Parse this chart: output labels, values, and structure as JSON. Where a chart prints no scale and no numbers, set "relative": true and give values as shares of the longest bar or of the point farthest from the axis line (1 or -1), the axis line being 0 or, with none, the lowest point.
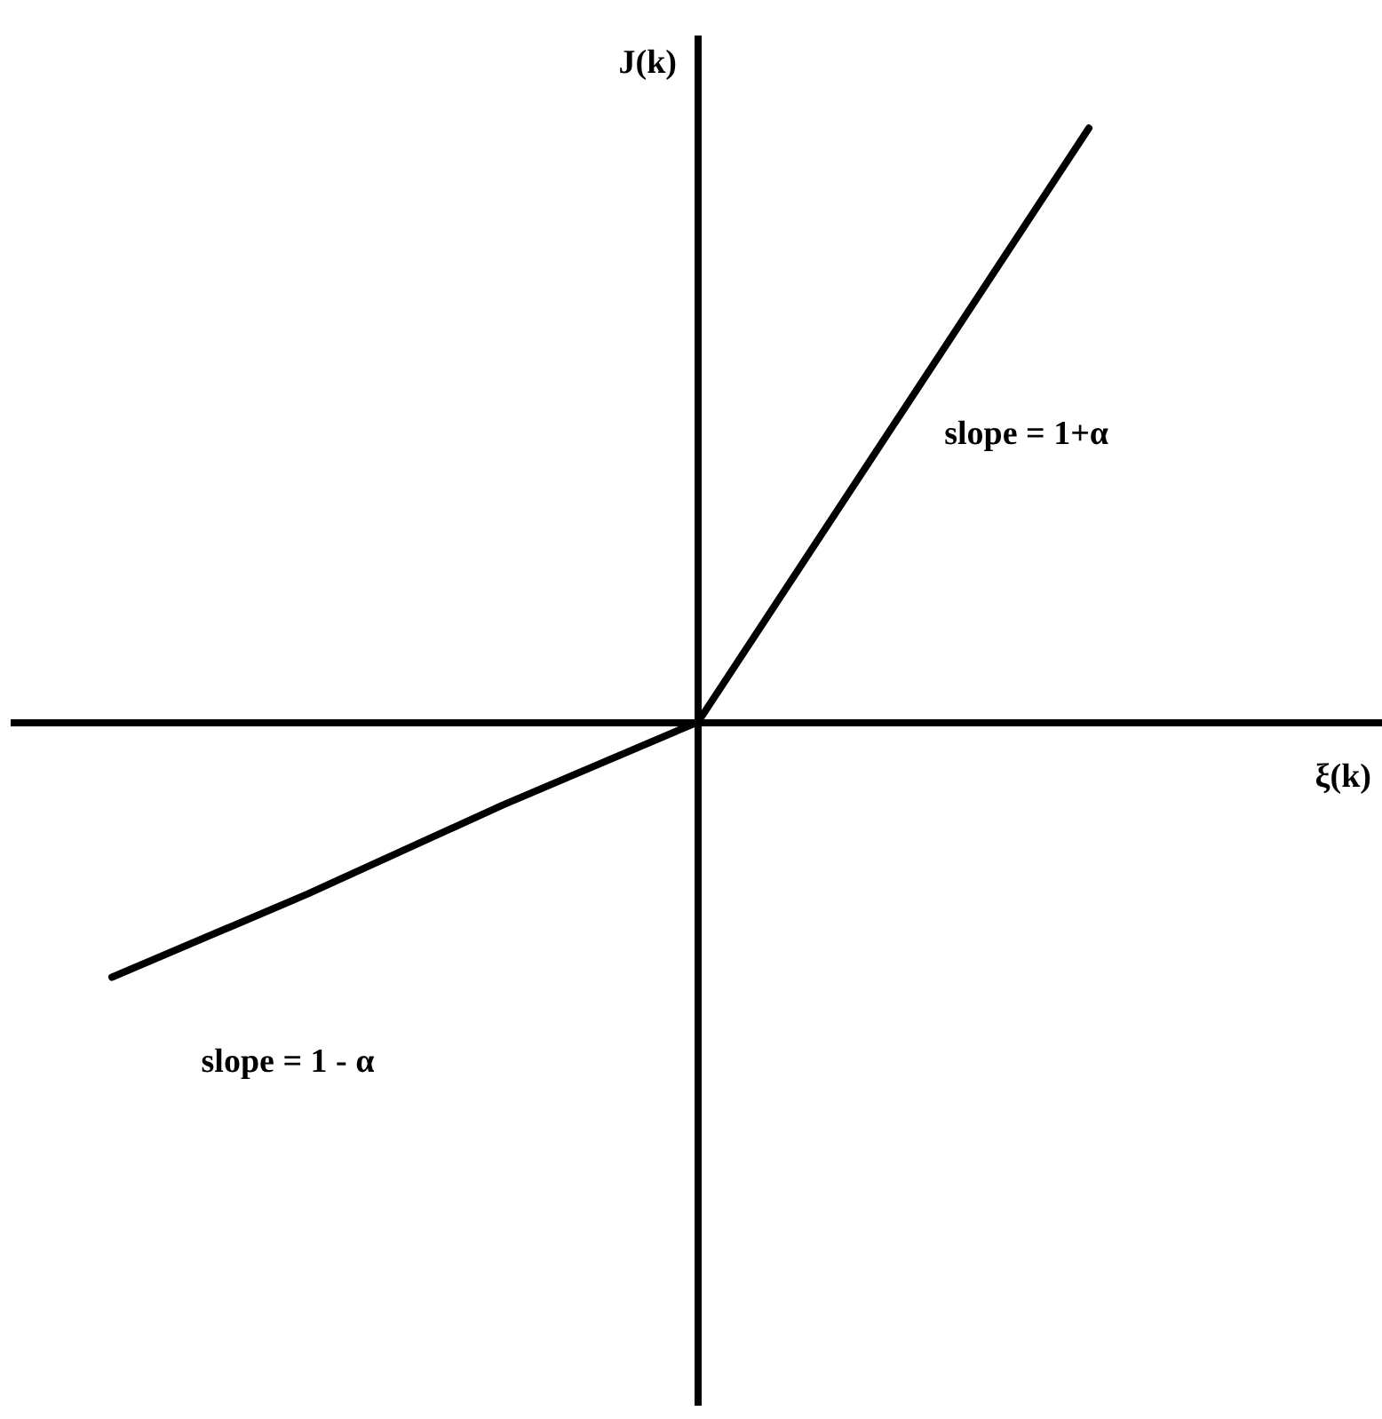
{
  "chart_data": {
    "type": "line",
    "relative": true,
    "xlabel": "ξ(k)",
    "ylabel": "J(k)",
    "categories": [
      null,
      null,
      null,
      null,
      null,
      null,
      null
    ],
    "series": [
      {
        "color": "#000000",
        "values": [
          -0.43,
          -0.29,
          -0.14,
          0,
          0.5,
          1,
          null
        ]
      }
    ],
    "annotations": [
      "slope = 1+α",
      "slope = 1 - α"
    ],
    "marker": "none",
    "line_style": "solid",
    "legend": false
  }
}
